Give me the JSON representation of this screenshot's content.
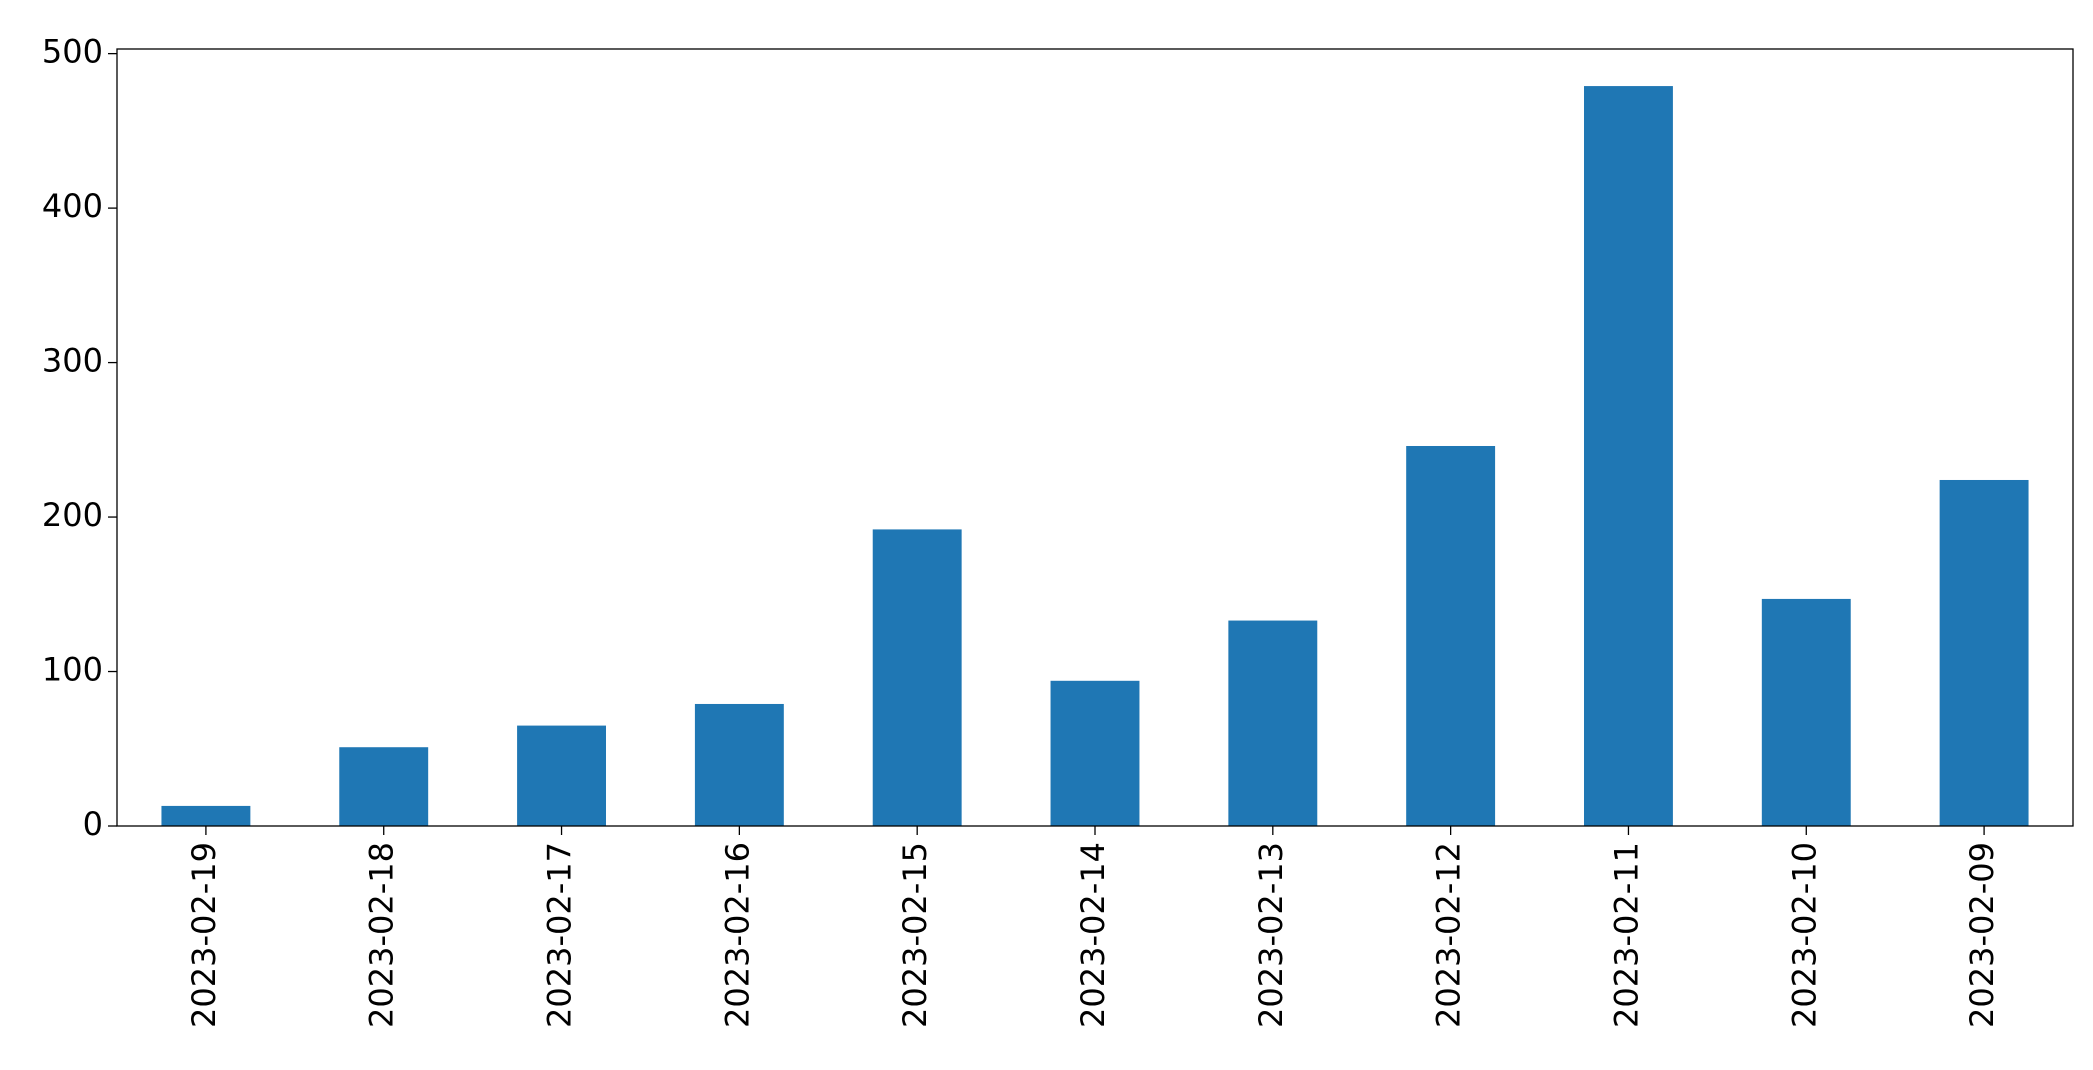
{
  "chart_data": {
    "type": "bar",
    "categories": [
      "2023-02-19",
      "2023-02-18",
      "2023-02-17",
      "2023-02-16",
      "2023-02-15",
      "2023-02-14",
      "2023-02-13",
      "2023-02-12",
      "2023-02-11",
      "2023-02-10",
      "2023-02-09"
    ],
    "values": [
      13,
      51,
      65,
      79,
      192,
      94,
      133,
      246,
      479,
      147,
      224
    ],
    "color": "#1f77b4",
    "ylim": [
      0,
      503
    ],
    "yticks": [
      0,
      100,
      200,
      300,
      400,
      500
    ],
    "grid": false
  }
}
